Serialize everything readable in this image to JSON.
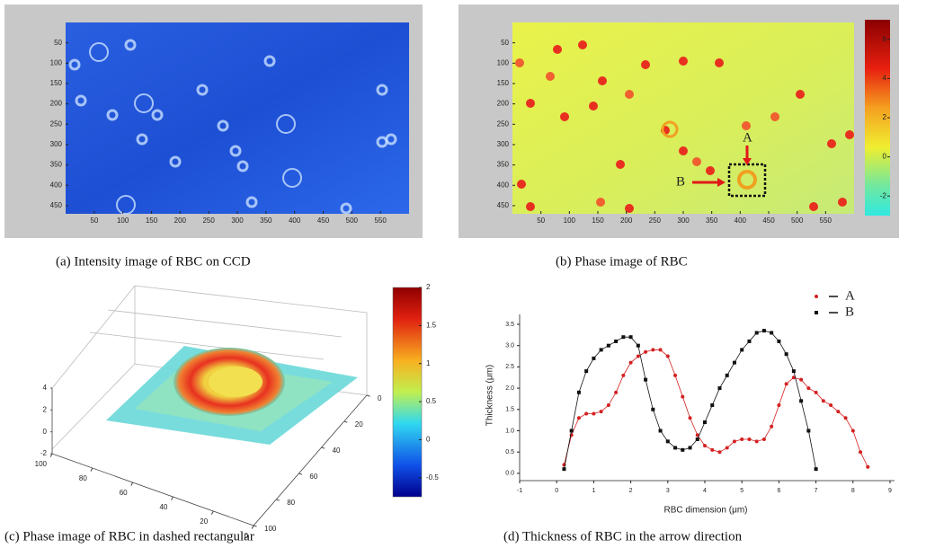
{
  "panels": [
    {
      "caption": "(a) Intensity image of RBC on CCD",
      "xlim": [
        0,
        600
      ],
      "ylim": [
        0,
        470
      ],
      "xticks": [
        50,
        100,
        150,
        200,
        250,
        300,
        350,
        400,
        450,
        500,
        550
      ],
      "yticks": [
        50,
        100,
        150,
        200,
        250,
        300,
        350,
        400,
        450
      ]
    },
    {
      "caption": "(b) Phase image of RBC",
      "xlim": [
        0,
        600
      ],
      "ylim": [
        0,
        470
      ],
      "xticks": [
        50,
        100,
        150,
        200,
        250,
        300,
        350,
        400,
        450,
        500,
        550
      ],
      "yticks": [
        50,
        100,
        150,
        200,
        250,
        300,
        350,
        400,
        450
      ],
      "colorbar": {
        "lim": [
          -3,
          7
        ],
        "ticks": [
          6,
          4,
          2,
          0,
          -2
        ]
      },
      "annotations": [
        "A",
        "B"
      ]
    },
    {
      "caption": "(c) Phase image of RBC in dashed rectangular",
      "xlim": [
        100,
        0
      ],
      "ylim": [
        0,
        100
      ],
      "zlim": [
        -2,
        4
      ],
      "xticks": [
        100,
        80,
        60,
        40,
        20,
        0
      ],
      "yticks": [
        0,
        20,
        40,
        60,
        80,
        100
      ],
      "zticks": [
        4,
        2,
        0,
        -2
      ],
      "colorbar": {
        "lim": [
          -0.75,
          2
        ],
        "ticks": [
          2,
          1.5,
          1,
          0.5,
          0,
          -0.5
        ]
      }
    },
    {
      "caption": "(d) Thickness of RBC in the arrow direction"
    }
  ],
  "chart_data": {
    "type": "line",
    "x_label": "RBC dimension (μm)",
    "y_label": "Thickness (μm)",
    "xlim": [
      -1,
      9
    ],
    "ylim": [
      -0.15,
      3.7
    ],
    "xticks": [
      -1,
      0,
      1,
      2,
      3,
      4,
      5,
      6,
      7,
      8,
      9
    ],
    "yticks": [
      {
        "value": 0,
        "label": "0.0"
      },
      {
        "value": 0.5,
        "label": "0.5"
      },
      {
        "value": 1,
        "label": "1.0"
      },
      {
        "value": 1.5,
        "label": "1.5"
      },
      {
        "value": 2,
        "label": "2.0"
      },
      {
        "value": 2.5,
        "label": "2.5"
      },
      {
        "value": 3,
        "label": "3.0"
      },
      {
        "value": 3.5,
        "label": "3.5"
      }
    ],
    "series": [
      {
        "name": "A",
        "color": "#d42020",
        "marker": "circle",
        "x": [
          0.2,
          0.4,
          0.6,
          0.8,
          1.0,
          1.2,
          1.4,
          1.6,
          1.8,
          2.0,
          2.2,
          2.4,
          2.6,
          2.8,
          3.0,
          3.2,
          3.4,
          3.6,
          3.8,
          4.0,
          4.2,
          4.4,
          4.6,
          4.8,
          5.0,
          5.2,
          5.4,
          5.6,
          5.8,
          6.0,
          6.2,
          6.4,
          6.6,
          6.8,
          7.0,
          7.2,
          7.4,
          7.6,
          7.8,
          8.0,
          8.2,
          8.4
        ],
        "values": [
          0.2,
          0.9,
          1.3,
          1.4,
          1.4,
          1.45,
          1.6,
          1.9,
          2.3,
          2.6,
          2.75,
          2.85,
          2.9,
          2.9,
          2.75,
          2.3,
          1.8,
          1.3,
          0.9,
          0.65,
          0.55,
          0.5,
          0.6,
          0.75,
          0.8,
          0.8,
          0.75,
          0.8,
          1.1,
          1.6,
          2.1,
          2.25,
          2.2,
          2.0,
          1.9,
          1.7,
          1.6,
          1.45,
          1.3,
          1.0,
          0.5,
          0.15
        ]
      },
      {
        "name": "B",
        "color": "#111111",
        "marker": "square",
        "x": [
          0.2,
          0.4,
          0.6,
          0.8,
          1.0,
          1.2,
          1.4,
          1.6,
          1.8,
          2.0,
          2.2,
          2.4,
          2.6,
          2.8,
          3.0,
          3.2,
          3.4,
          3.6,
          3.8,
          4.0,
          4.2,
          4.4,
          4.6,
          4.8,
          5.0,
          5.2,
          5.4,
          5.6,
          5.8,
          6.0,
          6.2,
          6.4,
          6.6,
          6.8,
          7.0
        ],
        "values": [
          0.1,
          1.0,
          1.9,
          2.4,
          2.7,
          2.9,
          3.0,
          3.1,
          3.2,
          3.2,
          3.0,
          2.2,
          1.5,
          1.0,
          0.75,
          0.6,
          0.55,
          0.6,
          0.8,
          1.2,
          1.6,
          2.0,
          2.3,
          2.6,
          2.9,
          3.1,
          3.3,
          3.35,
          3.3,
          3.1,
          2.8,
          2.4,
          1.7,
          1.0,
          0.1
        ]
      }
    ]
  }
}
